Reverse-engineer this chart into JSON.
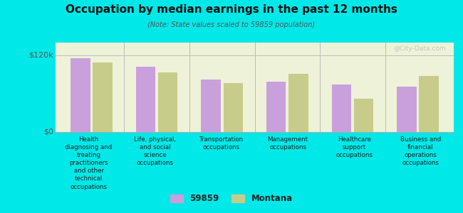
{
  "title": "Occupation by median earnings in the past 12 months",
  "subtitle": "(Note: State values scaled to 59859 population)",
  "background_color": "#00e8e8",
  "plot_bg_color": "#eef2d8",
  "categories": [
    "Health\ndiagnosing and\ntreating\npractitioners\nand other\ntechnical\noccupations",
    "Life, physical,\nand social\nscience\noccupations",
    "Transportation\noccupations",
    "Management\noccupations",
    "Healthcare\nsupport\noccupations",
    "Business and\nfinancial\noperations\noccupations"
  ],
  "series_59859": [
    116000,
    102000,
    82000,
    79000,
    74000,
    71000
  ],
  "series_montana": [
    109000,
    93000,
    77000,
    91000,
    52000,
    88000
  ],
  "color_59859": "#c9a0dc",
  "color_montana": "#c8cc8a",
  "legend_labels": [
    "59859",
    "Montana"
  ],
  "ylim": [
    0,
    140000
  ],
  "yticks": [
    0,
    120000
  ],
  "ytick_labels": [
    "$0",
    "$120k"
  ],
  "watermark": "@City-Data.com"
}
